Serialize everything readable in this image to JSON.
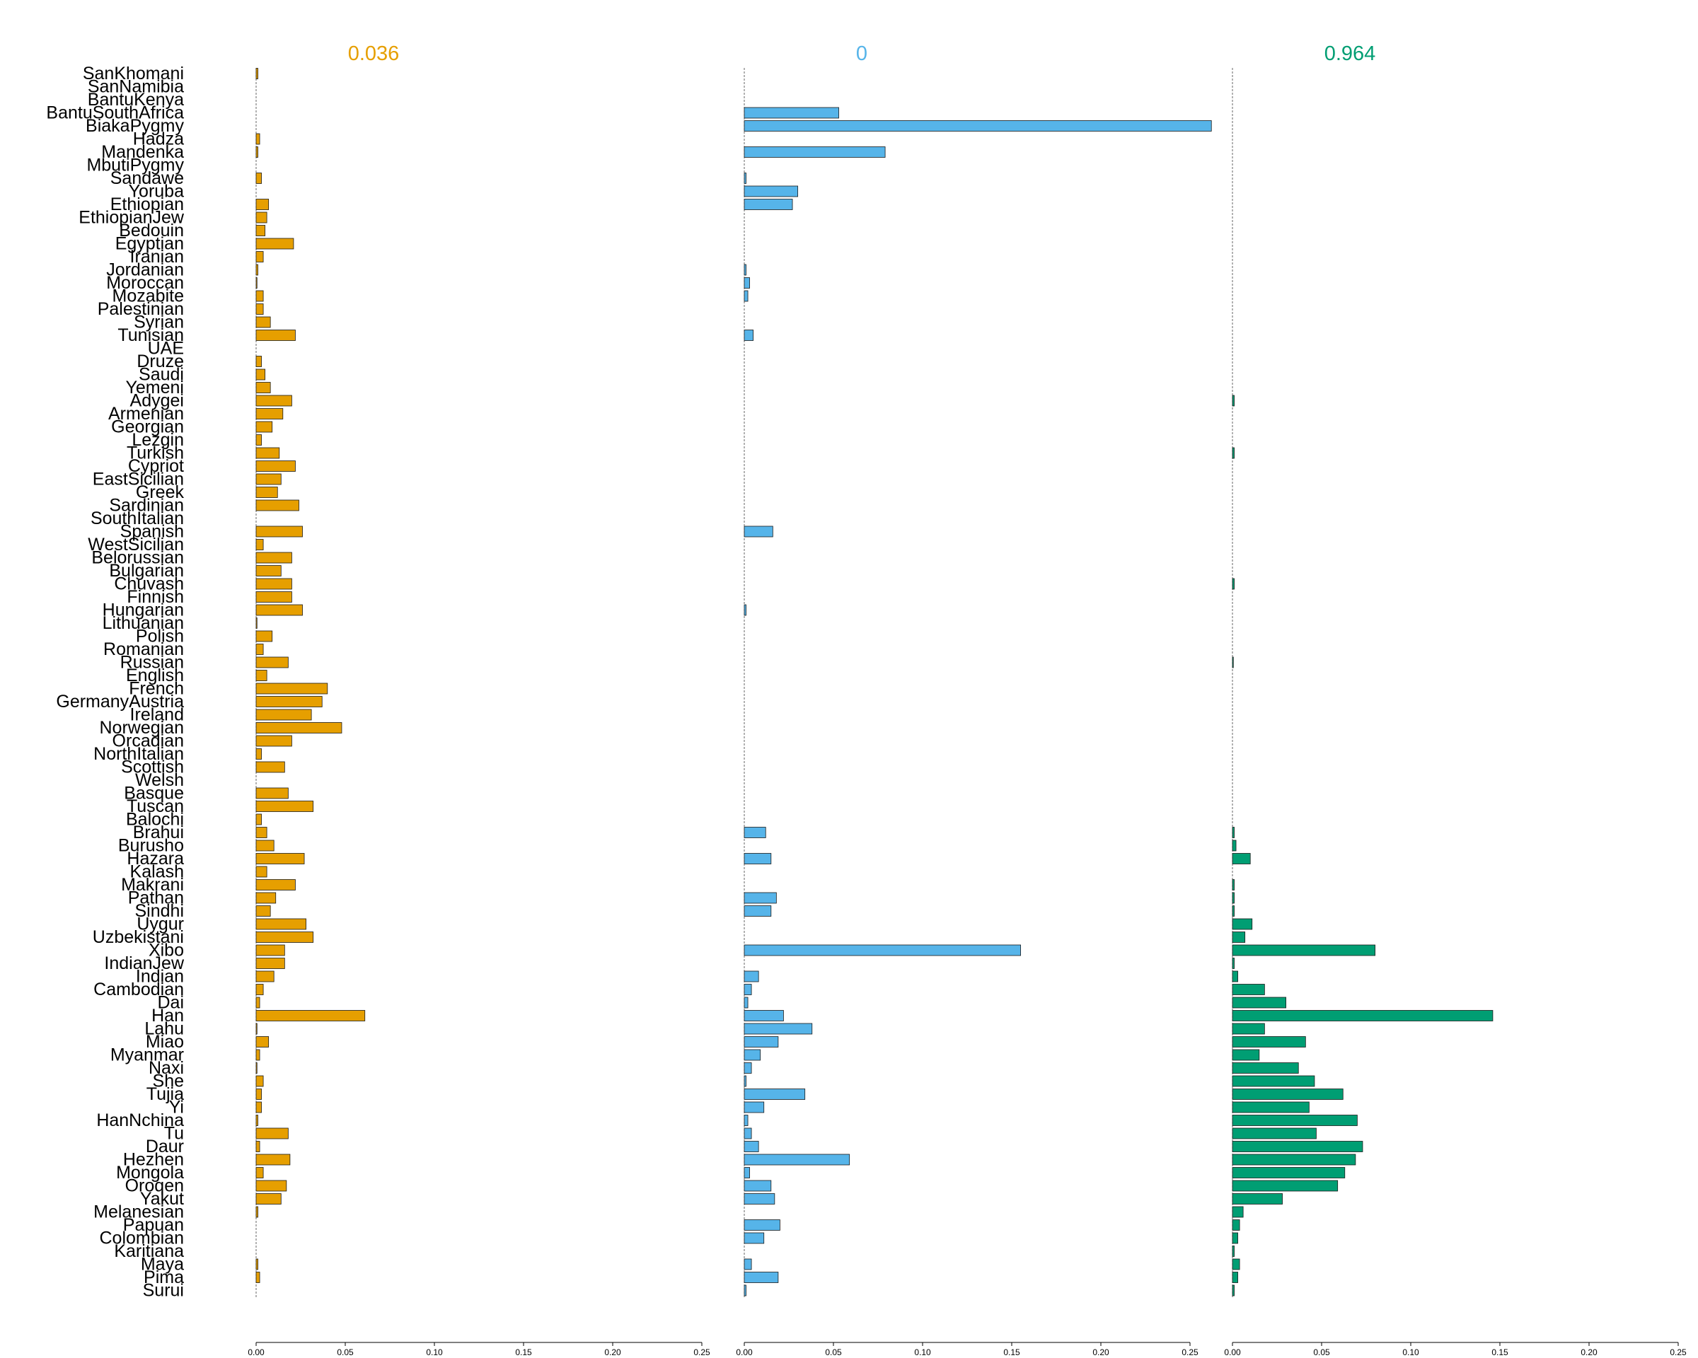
{
  "chart_data": {
    "type": "bar",
    "orientation": "horizontal",
    "populations": [
      "SanKhomani",
      "SanNamibia",
      "BantuKenya",
      "BantuSouthAfrica",
      "BiakaPygmy",
      "Hadza",
      "Mandenka",
      "MbutiPygmy",
      "Sandawe",
      "Yoruba",
      "Ethiopian",
      "EthiopianJew",
      "Bedouin",
      "Egyptian",
      "Iranian",
      "Jordanian",
      "Moroccan",
      "Mozabite",
      "Palestinian",
      "Syrian",
      "Tunisian",
      "UAE",
      "Druze",
      "Saudi",
      "Yemeni",
      "Adygei",
      "Armenian",
      "Georgian",
      "Lezgin",
      "Turkish",
      "Cypriot",
      "EastSicilian",
      "Greek",
      "Sardinian",
      "SouthItalian",
      "Spanish",
      "WestSicilian",
      "Belorussian",
      "Bulgarian",
      "Chuvash",
      "Finnish",
      "Hungarian",
      "Lithuanian",
      "Polish",
      "Romanian",
      "Russian",
      "English",
      "French",
      "GermanyAustria",
      "Ireland",
      "Norwegian",
      "Orcadian",
      "NorthItalian",
      "Scottish",
      "Welsh",
      "Basque",
      "Tuscan",
      "Balochi",
      "Brahui",
      "Burusho",
      "Hazara",
      "Kalash",
      "Makrani",
      "Pathan",
      "Sindhi",
      "Uygur",
      "Uzbekistani",
      "Xibo",
      "IndianJew",
      "Indian",
      "Cambodian",
      "Dai",
      "Han",
      "Lahu",
      "Miao",
      "Myanmar",
      "Naxi",
      "She",
      "Tujia",
      "Yi",
      "HanNchina",
      "Tu",
      "Daur",
      "Hezhen",
      "Mongola",
      "Oroqen",
      "Yakut",
      "Melanesian",
      "Papuan",
      "Colombian",
      "Karitiana",
      "Maya",
      "Pima",
      "Surui"
    ],
    "xlim": [
      0,
      0.25
    ],
    "xticks": [
      "0.00",
      "0.05",
      "0.10",
      "0.15",
      "0.20",
      "0.25"
    ],
    "panels": [
      {
        "name": "0.036",
        "color": "#E69F00",
        "values": [
          0.001,
          0,
          0,
          0,
          0,
          0.002,
          0.001,
          0,
          0.003,
          0,
          0.007,
          0.006,
          0.005,
          0.021,
          0.004,
          0.001,
          0.0005,
          0.004,
          0.004,
          0.008,
          0.022,
          0,
          0.003,
          0.005,
          0.008,
          0.02,
          0.015,
          0.009,
          0.003,
          0.013,
          0.022,
          0.014,
          0.012,
          0.024,
          0,
          0.026,
          0.004,
          0.02,
          0.014,
          0.02,
          0.02,
          0.026,
          0.0005,
          0.009,
          0.004,
          0.018,
          0.006,
          0.04,
          0.037,
          0.031,
          0.048,
          0.02,
          0.003,
          0.016,
          0,
          0.018,
          0.032,
          0.003,
          0.006,
          0.01,
          0.027,
          0.006,
          0.022,
          0.011,
          0.008,
          0.028,
          0.032,
          0.016,
          0.016,
          0.01,
          0.004,
          0.002,
          0.061,
          0.0005,
          0.007,
          0.002,
          0.0005,
          0.004,
          0.003,
          0.003,
          0.001,
          0.018,
          0.002,
          0.019,
          0.004,
          0.017,
          0.014,
          0.001,
          0,
          0,
          0,
          0.001,
          0.002,
          0
        ]
      },
      {
        "name": "0",
        "color": "#56B4E9",
        "values": [
          0,
          0,
          0,
          0.053,
          0.262,
          0,
          0.079,
          0,
          0.001,
          0.03,
          0.027,
          0,
          0,
          0,
          0,
          0.001,
          0.003,
          0.002,
          0,
          0,
          0.005,
          0,
          0,
          0,
          0,
          0,
          0,
          0,
          0,
          0,
          0,
          0,
          0,
          0,
          0,
          0.016,
          0,
          0,
          0,
          0,
          0,
          0.001,
          0,
          0,
          0,
          0,
          0,
          0,
          0,
          0,
          0,
          0,
          0,
          0,
          0,
          0,
          0,
          0,
          0.012,
          0,
          0.015,
          0,
          0,
          0.018,
          0.015,
          0,
          0,
          0.155,
          0,
          0.008,
          0.004,
          0.002,
          0.022,
          0.038,
          0.019,
          0.009,
          0.004,
          0.001,
          0.034,
          0.011,
          0.002,
          0.004,
          0.008,
          0.059,
          0.003,
          0.015,
          0.017,
          0,
          0.02,
          0.011,
          0,
          0.004,
          0.019,
          0.001
        ]
      },
      {
        "name": "0.964",
        "color": "#009E73",
        "values": [
          0,
          0,
          0,
          0,
          0,
          0,
          0,
          0,
          0,
          0,
          0,
          0,
          0,
          0,
          0,
          0,
          0,
          0,
          0,
          0,
          0,
          0,
          0,
          0,
          0,
          0.001,
          0,
          0,
          0,
          0.001,
          0,
          0,
          0,
          0,
          0,
          0,
          0,
          0,
          0,
          0.001,
          0,
          0,
          0,
          0,
          0,
          0.0005,
          0,
          0,
          0,
          0,
          0,
          0,
          0,
          0,
          0,
          0,
          0,
          0,
          0.001,
          0.002,
          0.01,
          0,
          0.001,
          0.001,
          0.001,
          0.011,
          0.007,
          0.08,
          0.001,
          0.003,
          0.018,
          0.03,
          0.146,
          0.018,
          0.041,
          0.015,
          0.037,
          0.046,
          0.062,
          0.043,
          0.07,
          0.047,
          0.073,
          0.069,
          0.063,
          0.059,
          0.028,
          0.006,
          0.004,
          0.003,
          0.001,
          0.004,
          0.003,
          0.001
        ]
      }
    ]
  }
}
